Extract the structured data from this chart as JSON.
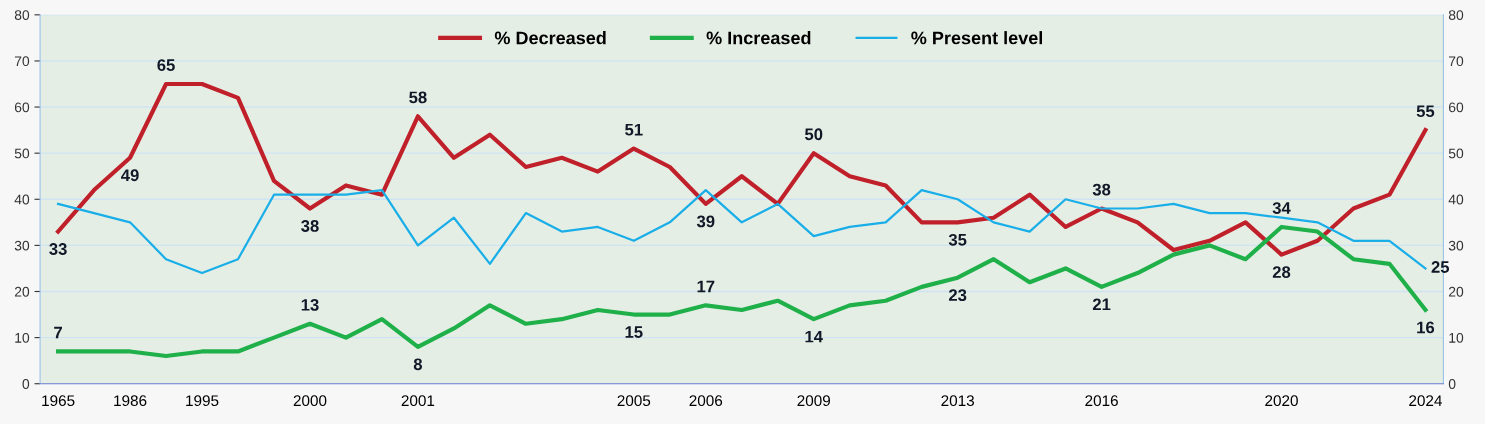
{
  "chart_data": {
    "type": "line",
    "categories": [
      "1965",
      null,
      "1986",
      null,
      "1995",
      null,
      null,
      "2000",
      null,
      null,
      "2001",
      null,
      null,
      null,
      null,
      null,
      "2005",
      null,
      "2006",
      null,
      null,
      "2009",
      null,
      null,
      null,
      "2013",
      null,
      null,
      null,
      "2016",
      null,
      null,
      null,
      null,
      "2020",
      null,
      null,
      null,
      "2024"
    ],
    "series": [
      {
        "name": "% Decreased",
        "color": "#c0202a",
        "values": [
          33,
          42,
          49,
          65,
          65,
          62,
          44,
          38,
          43,
          41,
          58,
          49,
          54,
          47,
          49,
          46,
          51,
          47,
          39,
          45,
          39,
          50,
          45,
          43,
          35,
          35,
          36,
          41,
          34,
          38,
          35,
          29,
          31,
          35,
          28,
          31,
          38,
          41,
          55
        ],
        "value_labels": [
          "33",
          null,
          "49",
          "65",
          null,
          null,
          null,
          "38",
          null,
          null,
          "58",
          null,
          null,
          null,
          null,
          null,
          "51",
          null,
          "39",
          null,
          null,
          "50",
          null,
          null,
          null,
          "35",
          null,
          null,
          null,
          "38",
          null,
          null,
          null,
          null,
          "28",
          null,
          null,
          null,
          "55"
        ]
      },
      {
        "name": "% Increased",
        "color": "#1fb04a",
        "values": [
          7,
          7,
          7,
          6,
          7,
          7,
          10,
          13,
          10,
          14,
          8,
          12,
          17,
          13,
          14,
          16,
          15,
          15,
          17,
          16,
          18,
          14,
          17,
          18,
          21,
          23,
          27,
          22,
          25,
          21,
          24,
          28,
          30,
          27,
          34,
          33,
          27,
          26,
          16
        ],
        "value_labels": [
          "7",
          null,
          null,
          null,
          null,
          null,
          null,
          "13",
          null,
          null,
          "8",
          null,
          null,
          null,
          null,
          null,
          "15",
          null,
          "17",
          null,
          null,
          "14",
          null,
          null,
          null,
          "23",
          null,
          null,
          null,
          "21",
          null,
          null,
          null,
          null,
          "34",
          null,
          null,
          null,
          "16"
        ]
      },
      {
        "name": "% Present level",
        "color": "#1aaee8",
        "values": [
          39,
          37,
          35,
          27,
          24,
          27,
          41,
          41,
          41,
          42,
          30,
          36,
          26,
          37,
          33,
          34,
          31,
          35,
          42,
          35,
          39,
          32,
          34,
          35,
          42,
          40,
          35,
          33,
          40,
          38,
          38,
          39,
          37,
          37,
          36,
          35,
          31,
          31,
          25
        ],
        "value_labels": [
          null,
          null,
          null,
          null,
          null,
          null,
          null,
          null,
          null,
          null,
          null,
          null,
          null,
          null,
          null,
          null,
          null,
          null,
          null,
          null,
          null,
          null,
          null,
          null,
          null,
          null,
          null,
          null,
          null,
          null,
          null,
          null,
          null,
          null,
          null,
          null,
          null,
          null,
          "25"
        ]
      }
    ],
    "ylim": [
      0,
      80
    ],
    "yticks": [
      0,
      10,
      20,
      30,
      40,
      50,
      60,
      70,
      80
    ],
    "y2lim": [
      0,
      80
    ],
    "y2ticks": [
      0,
      10,
      20,
      30,
      40,
      50,
      60,
      70,
      80
    ],
    "grid": "y",
    "legend": "top",
    "marker": "none",
    "line_style": "solid"
  }
}
